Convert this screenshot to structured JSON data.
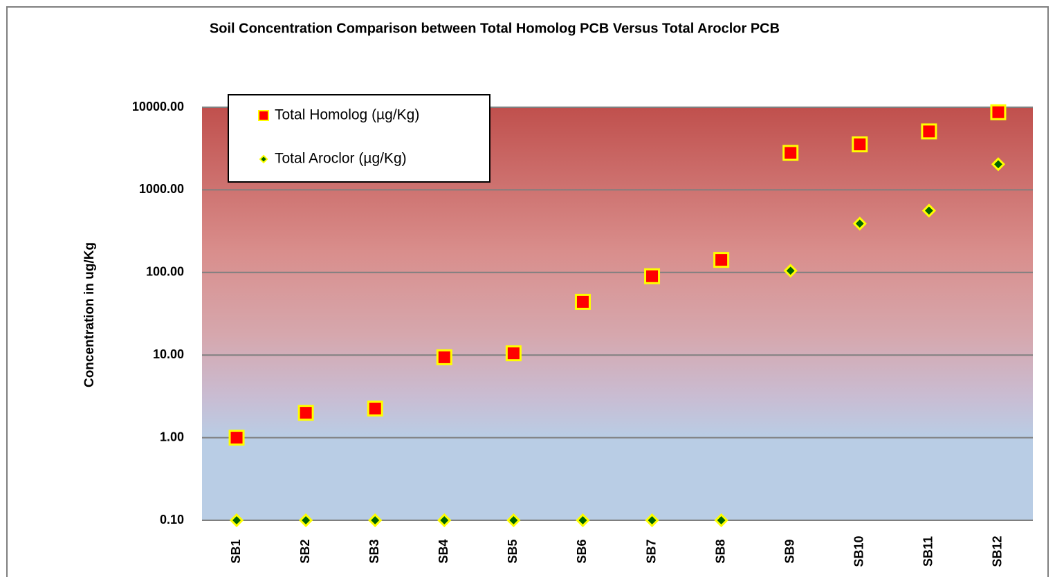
{
  "chart_data": {
    "type": "scatter",
    "title": "Soil Concentration Comparison between Total Homolog PCB Versus Total Aroclor PCB",
    "y_label": "Concentration in ug/Kg",
    "categories": [
      "SB1",
      "SB2",
      "SB3",
      "SB4",
      "SB5",
      "SB6",
      "SB7",
      "SB8",
      "SB9",
      "SB10",
      "SB11",
      "SB12"
    ],
    "series": [
      {
        "name": "Total Homolog (µg/Kg)",
        "color": "#ff0000",
        "marker": "square",
        "marker_edge": "#ffff00",
        "values": [
          1.0,
          2.0,
          2.25,
          9.4,
          10.5,
          44,
          90,
          142,
          2800,
          3550,
          5100,
          8700
        ]
      },
      {
        "name": "Total Aroclor (µg/Kg)",
        "color": "#006400",
        "marker": "diamond",
        "marker_edge": "#ffff00",
        "values": [
          0.1,
          0.1,
          0.1,
          0.1,
          0.1,
          0.1,
          0.1,
          0.1,
          105,
          390,
          560,
          2040
        ]
      }
    ],
    "ylim": [
      0.1,
      10000
    ],
    "log_y": true,
    "yticks": [
      {
        "value": 0.1,
        "label": "0.10"
      },
      {
        "value": 1,
        "label": "1.00"
      },
      {
        "value": 10,
        "label": "10.00"
      },
      {
        "value": 100,
        "label": "100.00"
      },
      {
        "value": 1000,
        "label": "1000.00"
      },
      {
        "value": 10000,
        "label": "10000.00"
      }
    ],
    "grid": true,
    "legend": "top-left"
  }
}
